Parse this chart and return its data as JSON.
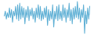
{
  "values": [
    -1,
    2,
    -3,
    1,
    -2,
    4,
    -2,
    3,
    -5,
    2,
    -1,
    5,
    -3,
    6,
    -4,
    7,
    -3,
    5,
    -2,
    4,
    -6,
    3,
    -2,
    5,
    -4,
    3,
    -1,
    4,
    -3,
    2,
    -5,
    4,
    -2,
    6,
    -3,
    5,
    -4,
    2,
    -3,
    4,
    -2,
    5,
    -7,
    3,
    -4,
    2,
    -3,
    6,
    -8,
    2,
    -3,
    5,
    -4,
    6,
    -3,
    2,
    -4,
    6,
    -2,
    4,
    -5,
    3,
    -2,
    7,
    -4,
    3,
    -6,
    4,
    -3,
    5,
    -2,
    8,
    -3,
    4,
    -5,
    3,
    -2,
    6,
    -12,
    2,
    -6,
    4,
    -3,
    5
  ],
  "line_color": "#5baed4",
  "fill_color": "#5baed4",
  "background_color": "#ffffff",
  "linewidth": 0.7,
  "baseline": 0,
  "fill_alpha": 0.4
}
